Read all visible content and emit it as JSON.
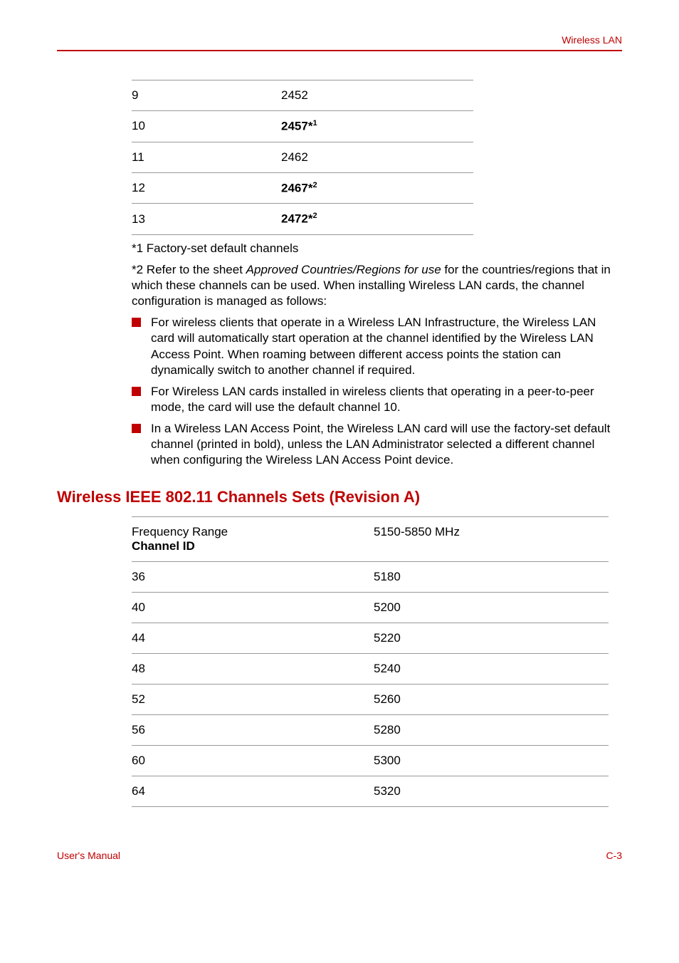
{
  "header": {
    "title": "Wireless LAN"
  },
  "table1": {
    "rows": [
      {
        "ch": "9",
        "freq": "2452",
        "bold": false,
        "sup": ""
      },
      {
        "ch": "10",
        "freq": "2457*",
        "bold": true,
        "sup": "1"
      },
      {
        "ch": "11",
        "freq": "2462",
        "bold": false,
        "sup": ""
      },
      {
        "ch": "12",
        "freq": "2467*",
        "bold": true,
        "sup": "2"
      },
      {
        "ch": "13",
        "freq": "2472*",
        "bold": true,
        "sup": "2"
      }
    ]
  },
  "note1": "*1 Factory-set default channels",
  "note2_pre": "*2 Refer to the sheet ",
  "note2_italic": "Approved Countries/Regions for use",
  "note2_post": " for the countries/regions that in which these channels can be used. When installing Wireless LAN cards, the channel configuration is managed as follows:",
  "bullets": [
    "For wireless clients that operate in a Wireless LAN Infrastructure, the Wireless LAN card will automatically start operation at the channel identified by the Wireless LAN Access Point. When roaming between different access points the station can dynamically switch to another channel if required.",
    "For Wireless LAN cards installed in wireless clients that operating in a peer-to-peer mode, the card will use the default channel 10.",
    "In a Wireless LAN Access Point, the Wireless LAN card will use the factory-set default channel (printed in bold), unless the LAN Administrator selected a different channel when configuring the Wireless LAN Access Point device."
  ],
  "section_heading": "Wireless IEEE 802.11 Channels Sets (Revision A)",
  "table2": {
    "header_col1_line1": "Frequency Range",
    "header_col1_line2": "Channel ID",
    "header_col2": "5150-5850 MHz",
    "rows": [
      {
        "ch": "36",
        "freq": "5180"
      },
      {
        "ch": "40",
        "freq": "5200"
      },
      {
        "ch": "44",
        "freq": "5220"
      },
      {
        "ch": "48",
        "freq": "5240"
      },
      {
        "ch": "52",
        "freq": "5260"
      },
      {
        "ch": "56",
        "freq": "5280"
      },
      {
        "ch": "60",
        "freq": "5300"
      },
      {
        "ch": "64",
        "freq": "5320"
      }
    ]
  },
  "footer": {
    "left": "User's Manual",
    "right": "C-3"
  },
  "colors": {
    "accent": "#c00000",
    "border": "#999999",
    "text": "#000000"
  }
}
